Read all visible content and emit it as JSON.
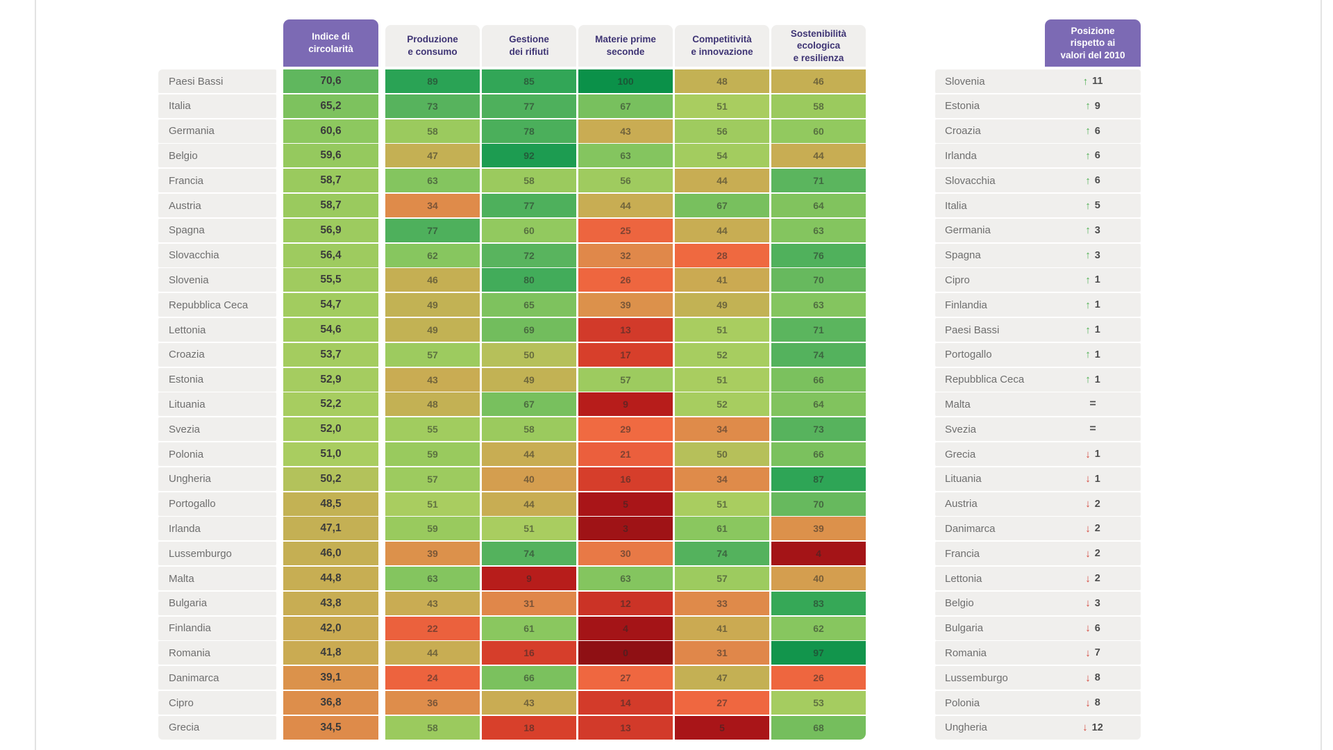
{
  "page": {
    "background": "#ffffff",
    "frame_line_color": "#e3e3e3"
  },
  "chart_data": {
    "type": "heatmap",
    "index_header": "Indice di\ncircolarità",
    "column_headers": [
      "Produzione\ne consumo",
      "Gestione\ndei rifiuti",
      "Materie prime\nseconde",
      "Competitività\ne innovazione",
      "Sostenibilità\necologica\ne resilienza"
    ],
    "position_header": "Posizione\nrispetto ai\nvalori del 2010",
    "rows": [
      {
        "country": "Paesi Bassi",
        "index": "70,6",
        "values": [
          89,
          85,
          100,
          48,
          46
        ]
      },
      {
        "country": "Italia",
        "index": "65,2",
        "values": [
          73,
          77,
          67,
          51,
          58
        ]
      },
      {
        "country": "Germania",
        "index": "60,6",
        "values": [
          58,
          78,
          43,
          56,
          60
        ]
      },
      {
        "country": "Belgio",
        "index": "59,6",
        "values": [
          47,
          92,
          63,
          54,
          44
        ]
      },
      {
        "country": "Francia",
        "index": "58,7",
        "values": [
          63,
          58,
          56,
          44,
          71
        ]
      },
      {
        "country": "Austria",
        "index": "58,7",
        "values": [
          34,
          77,
          44,
          67,
          64
        ]
      },
      {
        "country": "Spagna",
        "index": "56,9",
        "values": [
          77,
          60,
          25,
          44,
          63
        ]
      },
      {
        "country": "Slovacchia",
        "index": "56,4",
        "values": [
          62,
          72,
          32,
          28,
          76
        ]
      },
      {
        "country": "Slovenia",
        "index": "55,5",
        "values": [
          46,
          80,
          26,
          41,
          70
        ]
      },
      {
        "country": "Repubblica Ceca",
        "index": "54,7",
        "values": [
          49,
          65,
          39,
          49,
          63
        ]
      },
      {
        "country": "Lettonia",
        "index": "54,6",
        "values": [
          49,
          69,
          13,
          51,
          71
        ]
      },
      {
        "country": "Croazia",
        "index": "53,7",
        "values": [
          57,
          50,
          17,
          52,
          74
        ]
      },
      {
        "country": "Estonia",
        "index": "52,9",
        "values": [
          43,
          49,
          57,
          51,
          66
        ]
      },
      {
        "country": "Lituania",
        "index": "52,2",
        "values": [
          48,
          67,
          9,
          52,
          64
        ]
      },
      {
        "country": "Svezia",
        "index": "52,0",
        "values": [
          55,
          58,
          29,
          34,
          73
        ]
      },
      {
        "country": "Polonia",
        "index": "51,0",
        "values": [
          59,
          44,
          21,
          50,
          66
        ]
      },
      {
        "country": "Ungheria",
        "index": "50,2",
        "values": [
          57,
          40,
          16,
          34,
          87
        ]
      },
      {
        "country": "Portogallo",
        "index": "48,5",
        "values": [
          51,
          44,
          5,
          51,
          70
        ]
      },
      {
        "country": "Irlanda",
        "index": "47,1",
        "values": [
          59,
          51,
          3,
          61,
          39
        ]
      },
      {
        "country": "Lussemburgo",
        "index": "46,0",
        "values": [
          39,
          74,
          30,
          74,
          4
        ]
      },
      {
        "country": "Malta",
        "index": "44,8",
        "values": [
          63,
          9,
          63,
          57,
          40
        ]
      },
      {
        "country": "Bulgaria",
        "index": "43,8",
        "values": [
          43,
          31,
          12,
          33,
          83
        ]
      },
      {
        "country": "Finlandia",
        "index": "42,0",
        "values": [
          22,
          61,
          4,
          41,
          62
        ]
      },
      {
        "country": "Romania",
        "index": "41,8",
        "values": [
          44,
          16,
          0,
          31,
          97
        ]
      },
      {
        "country": "Danimarca",
        "index": "39,1",
        "values": [
          24,
          66,
          27,
          47,
          26
        ]
      },
      {
        "country": "Cipro",
        "index": "36,8",
        "values": [
          36,
          43,
          14,
          27,
          53
        ]
      },
      {
        "country": "Grecia",
        "index": "34,5",
        "values": [
          58,
          18,
          13,
          5,
          68
        ]
      }
    ],
    "position_rows": [
      {
        "country": "Slovenia",
        "direction": "up",
        "value": "11"
      },
      {
        "country": "Estonia",
        "direction": "up",
        "value": "9"
      },
      {
        "country": "Croazia",
        "direction": "up",
        "value": "6"
      },
      {
        "country": "Irlanda",
        "direction": "up",
        "value": "6"
      },
      {
        "country": "Slovacchia",
        "direction": "up",
        "value": "6"
      },
      {
        "country": "Italia",
        "direction": "up",
        "value": "5"
      },
      {
        "country": "Germania",
        "direction": "up",
        "value": "3"
      },
      {
        "country": "Spagna",
        "direction": "up",
        "value": "3"
      },
      {
        "country": "Cipro",
        "direction": "up",
        "value": "1"
      },
      {
        "country": "Finlandia",
        "direction": "up",
        "value": "1"
      },
      {
        "country": "Paesi Bassi",
        "direction": "up",
        "value": "1"
      },
      {
        "country": "Portogallo",
        "direction": "up",
        "value": "1"
      },
      {
        "country": "Repubblica Ceca",
        "direction": "up",
        "value": "1"
      },
      {
        "country": "Malta",
        "direction": "equal",
        "value": ""
      },
      {
        "country": "Svezia",
        "direction": "equal",
        "value": ""
      },
      {
        "country": "Grecia",
        "direction": "down",
        "value": "1"
      },
      {
        "country": "Lituania",
        "direction": "down",
        "value": "1"
      },
      {
        "country": "Austria",
        "direction": "down",
        "value": "2"
      },
      {
        "country": "Danimarca",
        "direction": "down",
        "value": "2"
      },
      {
        "country": "Francia",
        "direction": "down",
        "value": "2"
      },
      {
        "country": "Lettonia",
        "direction": "down",
        "value": "2"
      },
      {
        "country": "Belgio",
        "direction": "down",
        "value": "3"
      },
      {
        "country": "Bulgaria",
        "direction": "down",
        "value": "6"
      },
      {
        "country": "Romania",
        "direction": "down",
        "value": "7"
      },
      {
        "country": "Lussemburgo",
        "direction": "down",
        "value": "8"
      },
      {
        "country": "Polonia",
        "direction": "down",
        "value": "8"
      },
      {
        "country": "Ungheria",
        "direction": "down",
        "value": "12"
      }
    ],
    "color_scale": [
      [
        0,
        "#8f1014"
      ],
      [
        5,
        "#a91518"
      ],
      [
        9,
        "#b71d1b"
      ],
      [
        13,
        "#d23a2a"
      ],
      [
        18,
        "#d8402b"
      ],
      [
        20,
        "#ea5e3c"
      ],
      [
        29,
        "#f06a41"
      ],
      [
        31,
        "#e0874a"
      ],
      [
        39,
        "#dc914b"
      ],
      [
        41,
        "#cbaa52"
      ],
      [
        49,
        "#c2b254"
      ],
      [
        51,
        "#a9cd60"
      ],
      [
        59,
        "#99ca5e"
      ],
      [
        61,
        "#8ac75f"
      ],
      [
        69,
        "#72bd5d"
      ],
      [
        71,
        "#5bb55e"
      ],
      [
        79,
        "#49ae5b"
      ],
      [
        81,
        "#3aa958"
      ],
      [
        89,
        "#2aa355"
      ],
      [
        92,
        "#1d9c51"
      ],
      [
        100,
        "#0b9149"
      ]
    ],
    "colors": {
      "header_purple": "#7c6ab4",
      "header_text": "#3e3474",
      "label_bg": "#f0efed",
      "label_text": "#6e6e6e",
      "up_arrow": "#4cae4f",
      "down_arrow": "#d4473c",
      "equal_sign": "#4d4d4d"
    },
    "arrow_glyphs": {
      "up": "↑",
      "down": "↓",
      "equal": "="
    }
  }
}
